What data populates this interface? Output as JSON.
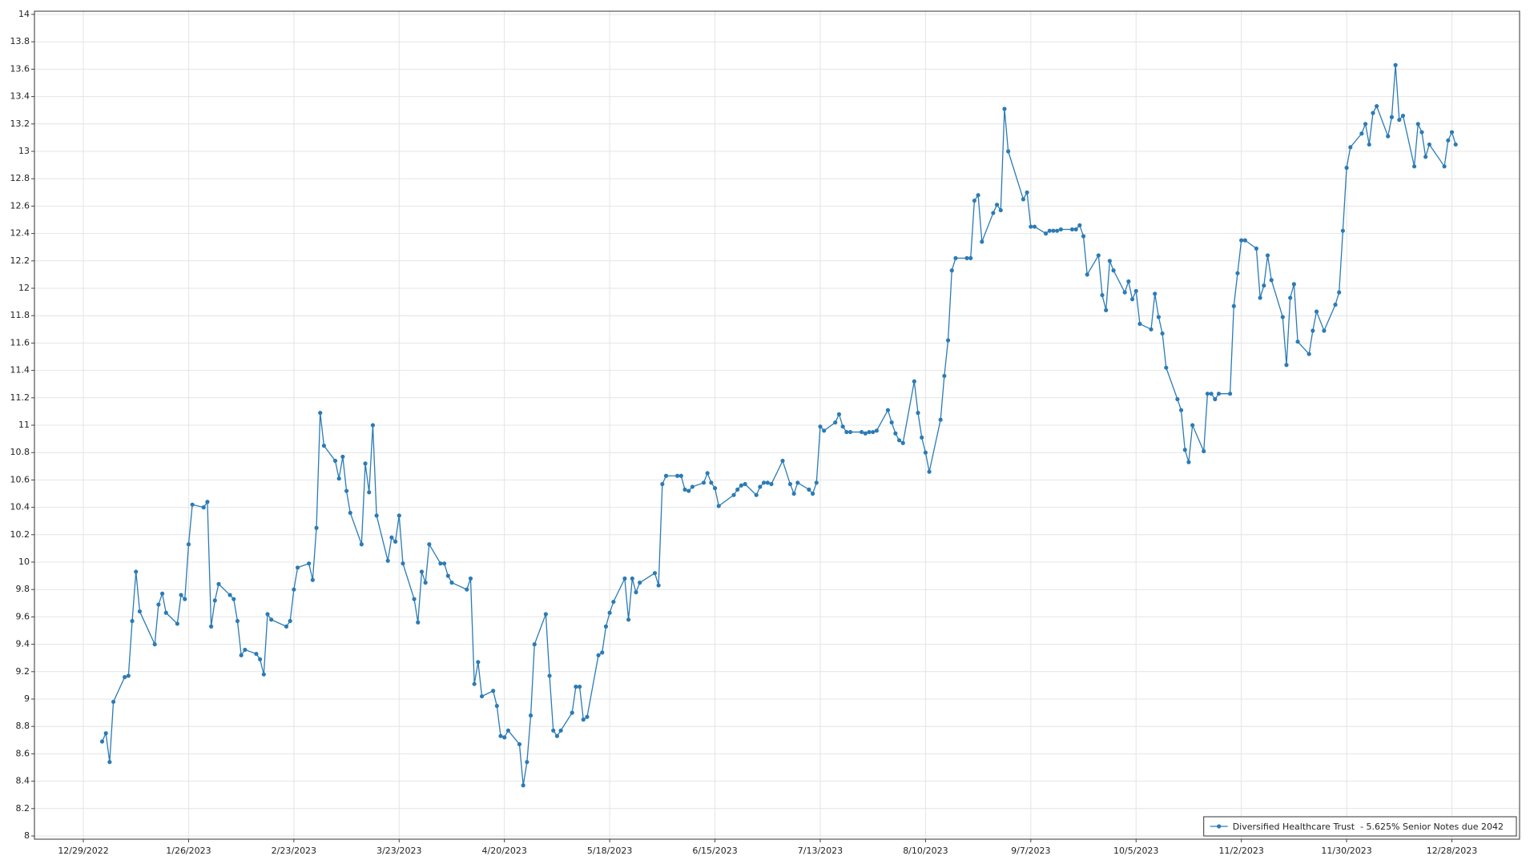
{
  "chart_data": {
    "type": "line",
    "x": [
      "1/3/2023",
      "1/4/2023",
      "1/5/2023",
      "1/6/2023",
      "1/9/2023",
      "1/10/2023",
      "1/11/2023",
      "1/12/2023",
      "1/13/2023",
      "1/17/2023",
      "1/18/2023",
      "1/19/2023",
      "1/20/2023",
      "1/23/2023",
      "1/24/2023",
      "1/25/2023",
      "1/26/2023",
      "1/27/2023",
      "1/30/2023",
      "1/31/2023",
      "2/1/2023",
      "2/2/2023",
      "2/3/2023",
      "2/6/2023",
      "2/7/2023",
      "2/8/2023",
      "2/9/2023",
      "2/10/2023",
      "2/13/2023",
      "2/14/2023",
      "2/15/2023",
      "2/16/2023",
      "2/17/2023",
      "2/21/2023",
      "2/22/2023",
      "2/23/2023",
      "2/24/2023",
      "2/27/2023",
      "2/28/2023",
      "3/1/2023",
      "3/2/2023",
      "3/3/2023",
      "3/6/2023",
      "3/7/2023",
      "3/8/2023",
      "3/9/2023",
      "3/10/2023",
      "3/13/2023",
      "3/14/2023",
      "3/15/2023",
      "3/16/2023",
      "3/17/2023",
      "3/20/2023",
      "3/21/2023",
      "3/22/2023",
      "3/23/2023",
      "3/24/2023",
      "3/27/2023",
      "3/28/2023",
      "3/29/2023",
      "3/30/2023",
      "3/31/2023",
      "4/3/2023",
      "4/4/2023",
      "4/5/2023",
      "4/6/2023",
      "4/10/2023",
      "4/11/2023",
      "4/12/2023",
      "4/13/2023",
      "4/14/2023",
      "4/17/2023",
      "4/18/2023",
      "4/19/2023",
      "4/20/2023",
      "4/21/2023",
      "4/24/2023",
      "4/25/2023",
      "4/26/2023",
      "4/27/2023",
      "4/28/2023",
      "5/1/2023",
      "5/2/2023",
      "5/3/2023",
      "5/4/2023",
      "5/5/2023",
      "5/8/2023",
      "5/9/2023",
      "5/10/2023",
      "5/11/2023",
      "5/12/2023",
      "5/15/2023",
      "5/16/2023",
      "5/17/2023",
      "5/18/2023",
      "5/19/2023",
      "5/22/2023",
      "5/23/2023",
      "5/24/2023",
      "5/25/2023",
      "5/26/2023",
      "5/30/2023",
      "5/31/2023",
      "6/1/2023",
      "6/2/2023",
      "6/5/2023",
      "6/6/2023",
      "6/7/2023",
      "6/8/2023",
      "6/9/2023",
      "6/12/2023",
      "6/13/2023",
      "6/14/2023",
      "6/15/2023",
      "6/16/2023",
      "6/20/2023",
      "6/21/2023",
      "6/22/2023",
      "6/23/2023",
      "6/26/2023",
      "6/27/2023",
      "6/28/2023",
      "6/29/2023",
      "6/30/2023",
      "7/3/2023",
      "7/5/2023",
      "7/6/2023",
      "7/7/2023",
      "7/10/2023",
      "7/11/2023",
      "7/12/2023",
      "7/13/2023",
      "7/14/2023",
      "7/17/2023",
      "7/18/2023",
      "7/19/2023",
      "7/20/2023",
      "7/21/2023",
      "7/24/2023",
      "7/25/2023",
      "7/26/2023",
      "7/27/2023",
      "7/28/2023",
      "7/31/2023",
      "8/1/2023",
      "8/2/2023",
      "8/3/2023",
      "8/4/2023",
      "8/7/2023",
      "8/8/2023",
      "8/9/2023",
      "8/10/2023",
      "8/11/2023",
      "8/14/2023",
      "8/15/2023",
      "8/16/2023",
      "8/17/2023",
      "8/18/2023",
      "8/21/2023",
      "8/22/2023",
      "8/23/2023",
      "8/24/2023",
      "8/25/2023",
      "8/28/2023",
      "8/29/2023",
      "8/30/2023",
      "8/31/2023",
      "9/1/2023",
      "9/5/2023",
      "9/6/2023",
      "9/7/2023",
      "9/8/2023",
      "9/11/2023",
      "9/12/2023",
      "9/13/2023",
      "9/14/2023",
      "9/15/2023",
      "9/18/2023",
      "9/19/2023",
      "9/20/2023",
      "9/21/2023",
      "9/22/2023",
      "9/25/2023",
      "9/26/2023",
      "9/27/2023",
      "9/28/2023",
      "9/29/2023",
      "10/2/2023",
      "10/3/2023",
      "10/4/2023",
      "10/5/2023",
      "10/6/2023",
      "10/9/2023",
      "10/10/2023",
      "10/11/2023",
      "10/12/2023",
      "10/13/2023",
      "10/16/2023",
      "10/17/2023",
      "10/18/2023",
      "10/19/2023",
      "10/20/2023",
      "10/23/2023",
      "10/24/2023",
      "10/25/2023",
      "10/26/2023",
      "10/27/2023",
      "10/30/2023",
      "10/31/2023",
      "11/1/2023",
      "11/2/2023",
      "11/3/2023",
      "11/6/2023",
      "11/7/2023",
      "11/8/2023",
      "11/9/2023",
      "11/10/2023",
      "11/13/2023",
      "11/14/2023",
      "11/15/2023",
      "11/16/2023",
      "11/17/2023",
      "11/20/2023",
      "11/21/2023",
      "11/22/2023",
      "11/24/2023",
      "11/27/2023",
      "11/28/2023",
      "11/29/2023",
      "11/30/2023",
      "12/1/2023",
      "12/4/2023",
      "12/5/2023",
      "12/6/2023",
      "12/7/2023",
      "12/8/2023",
      "12/11/2023",
      "12/12/2023",
      "12/13/2023",
      "12/14/2023",
      "12/15/2023",
      "12/18/2023",
      "12/19/2023",
      "12/20/2023",
      "12/21/2023",
      "12/22/2023",
      "12/26/2023",
      "12/27/2023",
      "12/28/2023",
      "12/29/2023"
    ],
    "series": [
      {
        "name": "Diversified Healthcare Trust  - 5.625% Senior Notes due 2042",
        "color": "#2b7bb5",
        "values": [
          8.69,
          8.75,
          8.54,
          8.98,
          9.16,
          9.17,
          9.57,
          9.93,
          9.64,
          9.4,
          9.69,
          9.77,
          9.63,
          9.55,
          9.76,
          9.73,
          10.13,
          10.42,
          10.4,
          10.44,
          9.53,
          9.72,
          9.84,
          9.76,
          9.73,
          9.57,
          9.32,
          9.36,
          9.33,
          9.29,
          9.18,
          9.62,
          9.58,
          9.53,
          9.57,
          9.8,
          9.96,
          9.99,
          9.87,
          10.25,
          11.09,
          10.85,
          10.74,
          10.61,
          10.77,
          10.52,
          10.36,
          10.13,
          10.72,
          10.51,
          11.0,
          10.34,
          10.01,
          10.18,
          10.15,
          10.34,
          9.99,
          9.73,
          9.56,
          9.93,
          9.85,
          10.13,
          9.99,
          9.99,
          9.9,
          9.85,
          9.8,
          9.88,
          9.11,
          9.27,
          9.02,
          9.06,
          8.95,
          8.73,
          8.72,
          8.77,
          8.67,
          8.37,
          8.54,
          8.88,
          9.4,
          9.62,
          9.17,
          8.77,
          8.73,
          8.77,
          8.9,
          9.09,
          9.09,
          8.85,
          8.87,
          9.32,
          9.34,
          9.53,
          9.63,
          9.71,
          9.88,
          9.58,
          9.88,
          9.78,
          9.85,
          9.92,
          9.83,
          10.57,
          10.63,
          10.63,
          10.63,
          10.53,
          10.52,
          10.55,
          10.58,
          10.65,
          10.58,
          10.54,
          10.41,
          10.49,
          10.53,
          10.56,
          10.57,
          10.49,
          10.55,
          10.58,
          10.58,
          10.57,
          10.74,
          10.57,
          10.5,
          10.58,
          10.53,
          10.5,
          10.58,
          10.99,
          10.96,
          11.02,
          11.08,
          10.99,
          10.95,
          10.95,
          10.95,
          10.94,
          10.95,
          10.95,
          10.96,
          11.11,
          11.02,
          10.94,
          10.89,
          10.87,
          11.32,
          11.09,
          10.91,
          10.8,
          10.66,
          11.04,
          11.36,
          11.62,
          12.13,
          12.22,
          12.22,
          12.22,
          12.64,
          12.68,
          12.34,
          12.55,
          12.61,
          12.57,
          13.31,
          13.0,
          12.65,
          12.7,
          12.45,
          12.45,
          12.4,
          12.42,
          12.42,
          12.42,
          12.43,
          12.43,
          12.43,
          12.46,
          12.38,
          12.1,
          12.24,
          11.95,
          11.84,
          12.2,
          12.13,
          11.97,
          12.05,
          11.92,
          11.98,
          11.74,
          11.7,
          11.96,
          11.79,
          11.67,
          11.42,
          11.19,
          11.11,
          10.82,
          10.73,
          11.0,
          10.81,
          11.23,
          11.23,
          11.19,
          11.23,
          11.23,
          11.87,
          12.11,
          12.35,
          12.35,
          12.29,
          11.93,
          12.02,
          12.24,
          12.06,
          11.79,
          11.44,
          11.93,
          12.03,
          11.61,
          11.52,
          11.69,
          11.83,
          11.69,
          11.88,
          11.97,
          12.42,
          12.88,
          13.03,
          13.13,
          13.2,
          13.05,
          13.28,
          13.33,
          13.11,
          13.25,
          13.63,
          13.23,
          13.26,
          12.89,
          13.2,
          13.14,
          12.96,
          13.05,
          12.89,
          13.08,
          13.14,
          13.05
        ]
      }
    ],
    "xlim": [
      "12/16/2022",
      "1/15/2024"
    ],
    "xticks": [
      "12/29/2022",
      "1/26/2023",
      "2/23/2023",
      "3/23/2023",
      "4/20/2023",
      "5/18/2023",
      "6/15/2023",
      "7/13/2023",
      "8/10/2023",
      "9/7/2023",
      "10/5/2023",
      "11/2/2023",
      "11/30/2023",
      "12/28/2023"
    ],
    "ylim": [
      8,
      14
    ],
    "yticks": [
      8,
      8.2,
      8.4,
      8.6,
      8.8,
      9,
      9.2,
      9.4,
      9.6,
      9.8,
      10,
      10.2,
      10.4,
      10.6,
      10.8,
      11,
      11.2,
      11.4,
      11.6,
      11.8,
      12,
      12.2,
      12.4,
      12.6,
      12.8,
      13,
      13.2,
      13.4,
      13.6,
      13.8,
      14
    ],
    "grid": true,
    "legend": "bottom-right"
  }
}
